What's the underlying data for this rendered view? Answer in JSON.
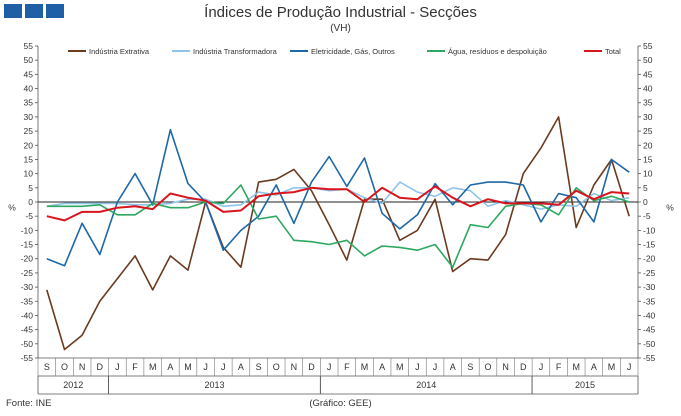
{
  "header": {
    "title": "Índices de Produção Industrial - Secções",
    "subtitle": "(VH)",
    "logo_icon": "ine-logo-icon"
  },
  "footer": {
    "source": "Fonte: INE",
    "credit": "(Gráfico: GEE)"
  },
  "chart_data": {
    "type": "line",
    "title": "Índices de Produção Industrial - Secções",
    "subtitle": "(VH)",
    "ylabel_left": "%",
    "ylabel_right": "%",
    "ylim": [
      -55,
      55
    ],
    "yticks": [
      -55,
      -50,
      -45,
      -40,
      -35,
      -30,
      -25,
      -20,
      -15,
      -10,
      -5,
      0,
      5,
      10,
      15,
      20,
      25,
      30,
      35,
      40,
      45,
      50,
      55
    ],
    "grid": false,
    "legend_position": "top",
    "x": [
      "S",
      "O",
      "N",
      "D",
      "J",
      "F",
      "M",
      "A",
      "M",
      "J",
      "J",
      "A",
      "S",
      "O",
      "N",
      "D",
      "J",
      "F",
      "M",
      "A",
      "M",
      "J",
      "J",
      "A",
      "S",
      "O",
      "N",
      "D",
      "J",
      "F",
      "M",
      "A",
      "M",
      "J"
    ],
    "years": [
      {
        "label": "2012",
        "start": 0,
        "end": 3
      },
      {
        "label": "2013",
        "start": 4,
        "end": 15
      },
      {
        "label": "2014",
        "start": 16,
        "end": 27
      },
      {
        "label": "2015",
        "start": 28,
        "end": 33
      }
    ],
    "series": [
      {
        "name": "Indústria Extrativa",
        "color": "#6b3a1f",
        "values": [
          -31,
          -52,
          -47,
          -35,
          -27,
          -19,
          -31,
          -19,
          -24,
          0,
          -16,
          -23,
          7,
          8,
          11.5,
          4,
          -8,
          -20.5,
          1,
          1,
          -13.5,
          -10,
          1,
          -24.5,
          -20,
          -20.5,
          -11.5,
          10,
          19,
          30,
          -9,
          6,
          15,
          -5
        ]
      },
      {
        "name": "Indústria Transformadora",
        "color": "#8ec4ea",
        "values": [
          -1.5,
          -0.5,
          -0.5,
          -0.5,
          -0.5,
          -1,
          -1,
          -0.5,
          1,
          1,
          -1.5,
          -1,
          3.5,
          2.5,
          5,
          5,
          4,
          4.5,
          1.5,
          -0.5,
          7,
          3.5,
          2,
          5,
          4,
          -1.5,
          0.5,
          -1,
          -2.5,
          -1,
          -1.5,
          3,
          0.5,
          1.5
        ]
      },
      {
        "name": "Eletricidade, Gás, Outros",
        "color": "#1e68a8",
        "values": [
          -20,
          -22.5,
          -7.5,
          -18.5,
          0,
          10,
          -1,
          25.5,
          6.5,
          0,
          -17,
          -10,
          -5,
          6,
          -7.5,
          7,
          16,
          5.5,
          15.5,
          -4,
          -9.5,
          -4.5,
          6.5,
          -1,
          6,
          7,
          7,
          6,
          -7,
          3,
          1.5,
          -7,
          15,
          10.5
        ]
      },
      {
        "name": "Água, resíduos e despoluição",
        "color": "#2ea860",
        "values": [
          -1.5,
          -1.5,
          -1.5,
          -1,
          -4.5,
          -4.5,
          -0.5,
          -2,
          -2,
          0,
          -0.5,
          6,
          -6,
          -5,
          -13.5,
          -14,
          -15,
          -13.5,
          -19,
          -15.5,
          -16,
          -17,
          -15,
          -23,
          -8,
          -9,
          -1.5,
          -0.5,
          -1,
          -4.5,
          5,
          0.5,
          2,
          0
        ]
      },
      {
        "name": "Total",
        "color": "#d9151e",
        "values": [
          -5,
          -6.5,
          -3.5,
          -3.5,
          -2,
          -1.5,
          -2.5,
          3,
          1.5,
          0.5,
          -3.5,
          -3,
          2,
          3,
          3.5,
          5,
          4.5,
          4.5,
          0,
          5,
          1.5,
          1,
          5.5,
          1.5,
          -1.5,
          1,
          -0.5,
          -0.5,
          -0.5,
          -1,
          4,
          1,
          3.5,
          3
        ]
      }
    ]
  }
}
